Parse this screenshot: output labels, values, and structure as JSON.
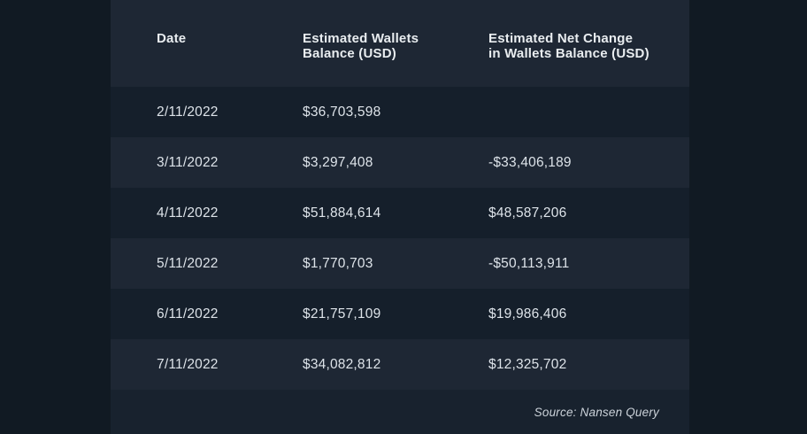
{
  "colors": {
    "outer-bg": "#111a23",
    "band-light": "#1e2734",
    "row-dark": "#151f2b",
    "footer-bg": "#18222e",
    "header-text": "#e9edf0",
    "cell-text": "#dde3e9",
    "source-text": "#ccd3da"
  },
  "table": {
    "columns": [
      "Date",
      "Estimated Wallets\nBalance (USD)",
      "Estimated Net Change\nin Wallets Balance (USD)"
    ],
    "rows": [
      {
        "date": "2/11/2022",
        "balance": "$36,703,598",
        "net_change": ""
      },
      {
        "date": "3/11/2022",
        "balance": "$3,297,408",
        "net_change": "-$33,406,189"
      },
      {
        "date": "4/11/2022",
        "balance": "$51,884,614",
        "net_change": "$48,587,206"
      },
      {
        "date": "5/11/2022",
        "balance": "$1,770,703",
        "net_change": "-$50,113,911"
      },
      {
        "date": "6/11/2022",
        "balance": "$21,757,109",
        "net_change": "$19,986,406"
      },
      {
        "date": "7/11/2022",
        "balance": "$34,082,812",
        "net_change": "$12,325,702"
      }
    ],
    "source": "Source: Nansen Query"
  },
  "chart_data": {
    "type": "table",
    "title": "",
    "columns": [
      "Date",
      "Estimated Wallets Balance (USD)",
      "Estimated Net Change in Wallets Balance (USD)"
    ],
    "rows": [
      [
        "2/11/2022",
        "$36,703,598",
        ""
      ],
      [
        "3/11/2022",
        "$3,297,408",
        "-$33,406,189"
      ],
      [
        "4/11/2022",
        "$51,884,614",
        "$48,587,206"
      ],
      [
        "5/11/2022",
        "$1,770,703",
        "-$50,113,911"
      ],
      [
        "6/11/2022",
        "$21,757,109",
        "$19,986,406"
      ],
      [
        "7/11/2022",
        "$34,082,812",
        "$12,325,702"
      ]
    ],
    "series": [
      {
        "name": "Estimated Wallets Balance (USD)",
        "values": [
          36703598,
          3297408,
          51884614,
          1770703,
          21757109,
          34082812
        ]
      },
      {
        "name": "Estimated Net Change in Wallets Balance (USD)",
        "values": [
          null,
          -33406189,
          48587206,
          -50113911,
          19986406,
          12325702
        ]
      }
    ],
    "categories": [
      "2/11/2022",
      "3/11/2022",
      "4/11/2022",
      "5/11/2022",
      "6/11/2022",
      "7/11/2022"
    ],
    "annotations": [
      "Source: Nansen Query"
    ]
  }
}
